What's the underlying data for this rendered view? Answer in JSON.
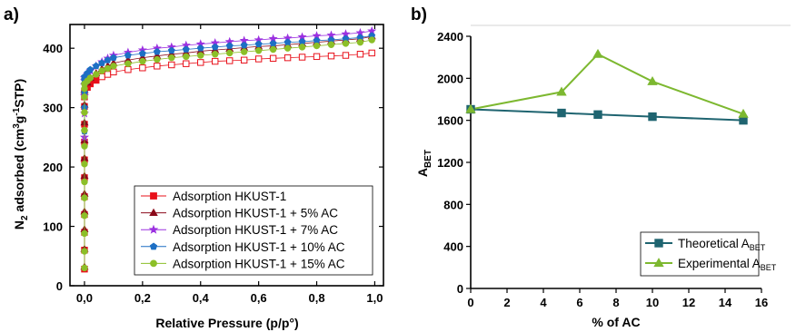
{
  "chart_data": [
    {
      "panel_label": "a)",
      "type": "scatter",
      "xlabel": "Relative Pressure (p/p°)",
      "ylabel": {
        "main": "N",
        "sub": "2",
        "rest": " adsorbed (cm",
        "sup1": "3",
        "mid": "g",
        "sup2": "-1",
        "end": "STP)"
      },
      "xlim": [
        -0.05,
        1.03
      ],
      "ylim": [
        0,
        440
      ],
      "x_ticks": [
        "0,0",
        "0,2",
        "0,4",
        "0,6",
        "0,8",
        "1,0"
      ],
      "x_tick_values": [
        0,
        0.2,
        0.4,
        0.6,
        0.8,
        1.0
      ],
      "y_ticks": [
        "0",
        "100",
        "200",
        "300",
        "400"
      ],
      "y_tick_values": [
        0,
        100,
        200,
        300,
        400
      ],
      "legend_position": "bottom-right",
      "series": [
        {
          "name": "Adsorption HKUST-1",
          "color": "#e8101a",
          "marker": "square",
          "x": [
            0.0,
            0.0,
            0.0,
            0.0,
            0.0,
            0.0,
            0.0,
            0.0,
            0.0,
            0.0,
            0.0,
            0.0,
            0.01,
            0.02,
            0.04,
            0.06,
            0.08,
            0.1,
            0.15,
            0.2,
            0.25,
            0.3,
            0.35,
            0.4,
            0.45,
            0.5,
            0.55,
            0.6,
            0.65,
            0.7,
            0.75,
            0.8,
            0.85,
            0.9,
            0.95,
            0.99
          ],
          "y": [
            28,
            60,
            90,
            120,
            150,
            182,
            212,
            242,
            272,
            302,
            318,
            327,
            334,
            340,
            346,
            352,
            356,
            360,
            364,
            367,
            370,
            372,
            374,
            376,
            378,
            379,
            380,
            382,
            383,
            384,
            385,
            386,
            387,
            388,
            390,
            392
          ]
        },
        {
          "name": "Adsorption HKUST-1 + 5% AC",
          "color": "#8b0a1a",
          "marker": "triangle",
          "x": [
            0.0,
            0.0,
            0.0,
            0.0,
            0.0,
            0.0,
            0.0,
            0.0,
            0.0,
            0.0,
            0.0,
            0.01,
            0.02,
            0.04,
            0.06,
            0.08,
            0.1,
            0.15,
            0.2,
            0.25,
            0.3,
            0.35,
            0.4,
            0.45,
            0.5,
            0.55,
            0.6,
            0.65,
            0.7,
            0.75,
            0.8,
            0.85,
            0.9,
            0.95,
            0.99
          ],
          "y": [
            32,
            62,
            95,
            125,
            155,
            185,
            215,
            245,
            275,
            305,
            330,
            342,
            350,
            358,
            365,
            370,
            375,
            380,
            384,
            387,
            390,
            392,
            395,
            397,
            399,
            401,
            403,
            404,
            406,
            408,
            410,
            412,
            414,
            416,
            420
          ]
        },
        {
          "name": "Adsorption HKUST-1 + 7% AC",
          "color": "#9b30e0",
          "marker": "star",
          "x": [
            0.0,
            0.0,
            0.0,
            0.0,
            0.0,
            0.0,
            0.01,
            0.02,
            0.04,
            0.06,
            0.08,
            0.1,
            0.15,
            0.2,
            0.25,
            0.3,
            0.35,
            0.4,
            0.45,
            0.5,
            0.55,
            0.6,
            0.65,
            0.7,
            0.75,
            0.8,
            0.85,
            0.9,
            0.95,
            0.99
          ],
          "y": [
            250,
            290,
            320,
            338,
            345,
            350,
            356,
            362,
            370,
            377,
            383,
            388,
            393,
            397,
            400,
            402,
            405,
            407,
            409,
            411,
            413,
            414,
            416,
            417,
            419,
            421,
            422,
            424,
            426,
            429
          ]
        },
        {
          "name": "Adsorption HKUST-1 + 10% AC",
          "color": "#1d6fc4",
          "marker": "pentagon",
          "x": [
            0.0,
            0.0,
            0.0,
            0.0,
            0.0,
            0.0,
            0.01,
            0.02,
            0.04,
            0.06,
            0.08,
            0.1,
            0.15,
            0.2,
            0.25,
            0.3,
            0.35,
            0.4,
            0.45,
            0.5,
            0.55,
            0.6,
            0.65,
            0.7,
            0.75,
            0.8,
            0.85,
            0.9,
            0.95,
            0.99
          ],
          "y": [
            260,
            300,
            325,
            340,
            347,
            352,
            358,
            364,
            370,
            375,
            380,
            384,
            388,
            391,
            394,
            396,
            398,
            400,
            402,
            404,
            405,
            407,
            408,
            410,
            411,
            413,
            414,
            416,
            418,
            421
          ]
        },
        {
          "name": "Adsorption HKUST-1 + 15% AC",
          "color": "#8cbf28",
          "marker": "circle",
          "x": [
            0.0,
            0.0,
            0.0,
            0.0,
            0.0,
            0.0,
            0.0,
            0.0,
            0.0,
            0.0,
            0.0,
            0.0,
            0.0,
            0.01,
            0.02,
            0.04,
            0.06,
            0.08,
            0.1,
            0.15,
            0.2,
            0.25,
            0.3,
            0.35,
            0.4,
            0.45,
            0.5,
            0.55,
            0.6,
            0.65,
            0.7,
            0.75,
            0.8,
            0.85,
            0.9,
            0.95,
            0.99
          ],
          "y": [
            30,
            58,
            88,
            118,
            148,
            175,
            205,
            235,
            262,
            292,
            318,
            332,
            340,
            345,
            350,
            356,
            362,
            366,
            370,
            374,
            378,
            381,
            384,
            386,
            388,
            390,
            392,
            394,
            396,
            398,
            400,
            402,
            404,
            406,
            408,
            410,
            414
          ]
        }
      ]
    },
    {
      "panel_label": "b)",
      "type": "line",
      "xlabel": "% of AC",
      "ylabel": {
        "main": "A",
        "sub": "BET"
      },
      "xlim": [
        0,
        16
      ],
      "ylim": [
        0,
        2400
      ],
      "x_ticks": [
        "0",
        "2",
        "4",
        "6",
        "8",
        "10",
        "12",
        "14",
        "16"
      ],
      "x_tick_values": [
        0,
        2,
        4,
        6,
        8,
        10,
        12,
        14,
        16
      ],
      "y_ticks": [
        "0",
        "400",
        "800",
        "1200",
        "1600",
        "2000",
        "2400"
      ],
      "y_tick_values": [
        0,
        400,
        800,
        1200,
        1600,
        2000,
        2400
      ],
      "legend_position": "bottom-right",
      "series": [
        {
          "name": "Theoretical A",
          "name_sub": "BET",
          "color": "#1f6470",
          "marker": "square",
          "x": [
            0,
            5,
            7,
            10,
            15
          ],
          "y": [
            1705,
            1670,
            1655,
            1635,
            1600
          ]
        },
        {
          "name": "Experimental A",
          "name_sub": "BET",
          "color": "#7db830",
          "marker": "triangle",
          "x": [
            0,
            5,
            7,
            10,
            15
          ],
          "y": [
            1705,
            1870,
            2230,
            1970,
            1660
          ]
        }
      ]
    }
  ]
}
